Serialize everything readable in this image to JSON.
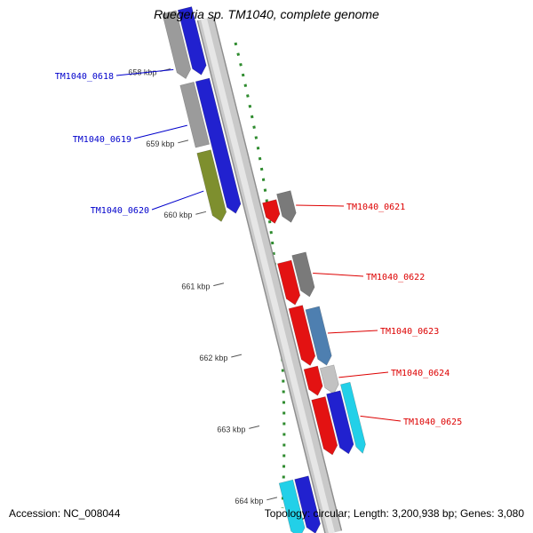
{
  "title": "Ruegeria sp. TM1040, complete genome",
  "status_bar": {
    "accession": "Accession: NC_008044",
    "summary": "Topology: circular; Length: 3,200,938 bp; Genes: 3,080"
  },
  "colors": {
    "backbone_fill": "#c9c9c9",
    "backbone_edge": "#8e8e8e",
    "backbone_highlight": "#e6e6e6",
    "scale_dots": "#2e8b2e",
    "tick_color": "#555555",
    "tick_text_color": "#333333",
    "gene_blue": "#2121cf",
    "gene_gray": "#9b9b9b",
    "gene_dark_gray": "#7a7a7a",
    "gene_olive": "#7e8f2e",
    "gene_red": "#e31212",
    "gene_steel_blue": "#4e7fb0",
    "gene_light_gray": "#c2c2c2",
    "gene_cyan": "#22d0e8",
    "label_blue": "#0000cc",
    "label_red": "#dd0000"
  },
  "ruler": {
    "unit": "kbp",
    "ticks": [
      {
        "kbp": 658,
        "label": "658 kbp"
      },
      {
        "kbp": 659,
        "label": "659 kbp"
      },
      {
        "kbp": 660,
        "label": "660 kbp"
      },
      {
        "kbp": 661,
        "label": "661 kbp"
      },
      {
        "kbp": 662,
        "label": "662 kbp"
      },
      {
        "kbp": 663,
        "label": "663 kbp"
      },
      {
        "kbp": 664,
        "label": "664 kbp"
      }
    ]
  },
  "chart_data": {
    "type": "genome-track",
    "region_kbp": [
      657.3,
      664.6
    ],
    "strand_direction": "forward-down",
    "features": [
      {
        "id": "segment-0618-gene",
        "lane": "L_outer",
        "color_key": "gene_gray",
        "from_kbp": 657.25,
        "to_kbp": 658.18,
        "head": true
      },
      {
        "id": "TM1040_0618",
        "lane": "L_inner",
        "color_key": "gene_blue",
        "from_kbp": 657.25,
        "to_kbp": 658.18,
        "head": true
      },
      {
        "id": "segment-0619-gene",
        "lane": "L_outer",
        "color_key": "gene_gray",
        "from_kbp": 658.25,
        "to_kbp": 659.12,
        "head": false
      },
      {
        "id": "TM1040_0619",
        "lane": "L_inner",
        "color_key": "gene_blue",
        "from_kbp": 658.25,
        "to_kbp": 660.12,
        "head": true
      },
      {
        "id": "TM1040_0620",
        "lane": "L_outer",
        "color_key": "gene_olive",
        "from_kbp": 659.2,
        "to_kbp": 660.18,
        "head": true
      },
      {
        "id": "TM1040_0621",
        "lane": "R_mid",
        "color_key": "gene_dark_gray",
        "from_kbp": 660.0,
        "to_kbp": 660.42,
        "head": true
      },
      {
        "id": "TM1040_0621-cds",
        "lane": "R_inner",
        "color_key": "gene_red",
        "from_kbp": 660.07,
        "to_kbp": 660.38,
        "head": true
      },
      {
        "id": "TM1040_0622",
        "lane": "R_mid",
        "color_key": "gene_dark_gray",
        "from_kbp": 660.86,
        "to_kbp": 661.46,
        "head": true
      },
      {
        "id": "TM1040_0622-cds",
        "lane": "R_inner",
        "color_key": "gene_red",
        "from_kbp": 660.92,
        "to_kbp": 661.52,
        "head": true
      },
      {
        "id": "TM1040_0623-cds",
        "lane": "R_inner",
        "color_key": "gene_red",
        "from_kbp": 661.55,
        "to_kbp": 662.37,
        "head": true
      },
      {
        "id": "TM1040_0623",
        "lane": "R_mid",
        "color_key": "gene_steel_blue",
        "from_kbp": 661.62,
        "to_kbp": 662.42,
        "head": true
      },
      {
        "id": "TM1040_0624-cds",
        "lane": "R_inner",
        "color_key": "gene_red",
        "from_kbp": 662.4,
        "to_kbp": 662.79,
        "head": true
      },
      {
        "id": "TM1040_0624",
        "lane": "R_mid",
        "color_key": "gene_light_gray",
        "from_kbp": 662.44,
        "to_kbp": 662.82,
        "head": true
      },
      {
        "id": "TM1040_0625-cds",
        "lane": "R_inner",
        "color_key": "gene_red",
        "from_kbp": 662.83,
        "to_kbp": 663.62,
        "head": true
      },
      {
        "id": "TM1040_0625",
        "lane": "R_mid",
        "color_key": "gene_blue",
        "from_kbp": 662.8,
        "to_kbp": 663.66,
        "head": true
      },
      {
        "id": "TM1040_0625-outer",
        "lane": "R_outer",
        "color_key": "gene_cyan",
        "from_kbp": 662.72,
        "to_kbp": 663.7,
        "head": true
      },
      {
        "id": "segment-bottom-cyan",
        "lane": "L_outer",
        "color_key": "gene_cyan",
        "from_kbp": 663.82,
        "to_kbp": 664.6,
        "head": true
      },
      {
        "id": "segment-bottom-blue",
        "lane": "L_inner",
        "color_key": "gene_blue",
        "from_kbp": 663.82,
        "to_kbp": 664.6,
        "head": true
      }
    ],
    "labels": [
      {
        "text": "TM1040_0618",
        "color_key": "label_blue",
        "side": "left",
        "anchor_kbp": 658.02
      },
      {
        "text": "TM1040_0619",
        "color_key": "label_blue",
        "side": "left",
        "anchor_kbp": 658.8
      },
      {
        "text": "TM1040_0620",
        "color_key": "label_blue",
        "side": "left",
        "anchor_kbp": 659.72
      },
      {
        "text": "TM1040_0621",
        "color_key": "label_red",
        "side": "right",
        "anchor_kbp": 660.21
      },
      {
        "text": "TM1040_0622",
        "color_key": "label_red",
        "side": "right",
        "anchor_kbp": 661.16
      },
      {
        "text": "TM1040_0623",
        "color_key": "label_red",
        "side": "right",
        "anchor_kbp": 662.0
      },
      {
        "text": "TM1040_0624",
        "color_key": "label_red",
        "side": "right",
        "anchor_kbp": 662.62
      },
      {
        "text": "TM1040_0625",
        "color_key": "label_red",
        "side": "right",
        "anchor_kbp": 663.2
      }
    ]
  }
}
